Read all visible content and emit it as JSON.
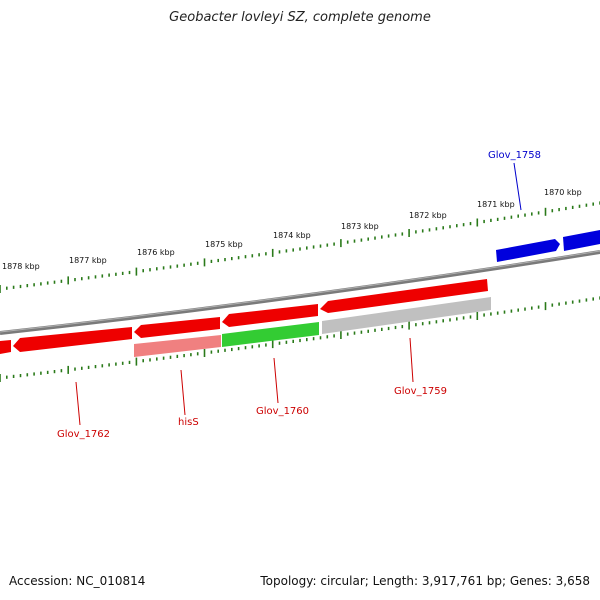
{
  "title": "Geobacter lovleyi SZ, complete genome",
  "footer": {
    "accession": "Accession: NC_010814",
    "summary": "Topology: circular; Length: 3,917,761 bp; Genes: 3,658"
  },
  "colors": {
    "backbone": "#7a7a7a",
    "tick": "#2a7a1a",
    "forward_gene": "#0000dd",
    "reverse_gene": "#ee0000",
    "reverse_label": "#cc0000",
    "forward_label": "#0000cc",
    "hisS_gene": "#f08080",
    "glov1760_gene": "#33cc33",
    "glov1759_gene": "#c0c0c0"
  },
  "scale_labels": [
    "1878 kbp",
    "1877 kbp",
    "1876 kbp",
    "1875 kbp",
    "1874 kbp",
    "1873 kbp",
    "1872 kbp",
    "1871 kbp",
    "1870 kbp"
  ],
  "gene_labels": {
    "glov_1758": "Glov_1758",
    "glov_1762": "Glov_1762",
    "hisS": "hisS",
    "glov_1760": "Glov_1760",
    "glov_1759": "Glov_1759"
  }
}
